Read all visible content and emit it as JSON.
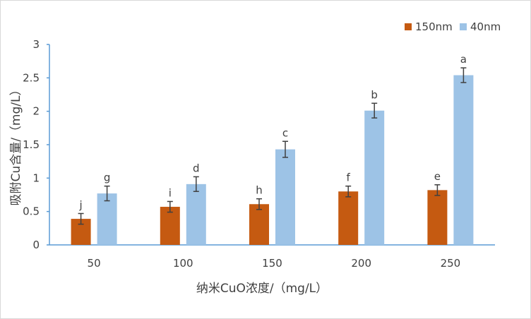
{
  "chart_data": {
    "type": "bar",
    "categories": [
      "50",
      "100",
      "150",
      "200",
      "250"
    ],
    "series": [
      {
        "name": "150nm",
        "color": "#c55a11",
        "values": [
          0.39,
          0.57,
          0.61,
          0.8,
          0.82
        ],
        "errors": [
          0.08,
          0.08,
          0.08,
          0.08,
          0.08
        ],
        "labels": [
          "j",
          "i",
          "h",
          "f",
          "e"
        ]
      },
      {
        "name": "40nm",
        "color": "#9dc3e6",
        "values": [
          0.77,
          0.91,
          1.43,
          2.01,
          2.54
        ],
        "errors": [
          0.11,
          0.11,
          0.12,
          0.11,
          0.11
        ],
        "labels": [
          "g",
          "d",
          "c",
          "b",
          "a"
        ]
      }
    ],
    "xlabel": "纳米CuO浓度/（mg/L）",
    "ylabel": "吸附Cu含量/（mg/L）",
    "ylim": [
      0,
      3
    ],
    "yticks": [
      "0",
      "0.5",
      "1",
      "1.5",
      "2",
      "2.5",
      "3"
    ],
    "legend_position": "top-right",
    "grid": false,
    "axis_color": "#5b9bd5"
  }
}
